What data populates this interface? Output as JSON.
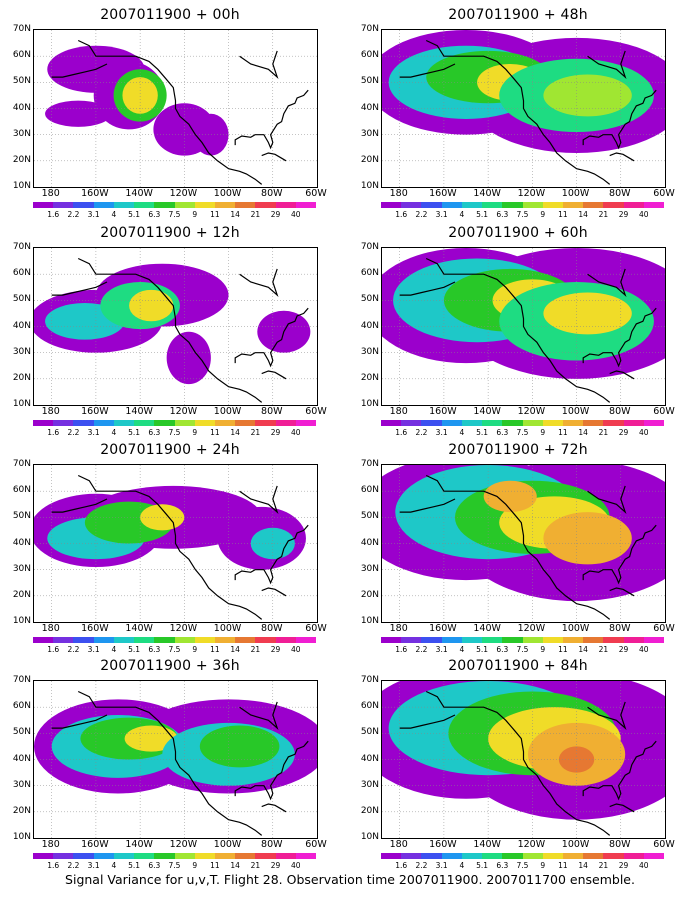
{
  "panels": [
    {
      "title": "2007011900 + 00h",
      "pattern": 0
    },
    {
      "title": "2007011900 + 12h",
      "pattern": 1
    },
    {
      "title": "2007011900 + 24h",
      "pattern": 2
    },
    {
      "title": "2007011900 + 36h",
      "pattern": 3
    },
    {
      "title": "2007011900 + 48h",
      "pattern": 4
    },
    {
      "title": "2007011900 + 60h",
      "pattern": 5
    },
    {
      "title": "2007011900 + 72h",
      "pattern": 6
    },
    {
      "title": "2007011900 + 84h",
      "pattern": 7
    }
  ],
  "lat_labels": [
    "70N",
    "60N",
    "50N",
    "40N",
    "30N",
    "20N",
    "10N"
  ],
  "lon_labels": [
    "180",
    "160W",
    "140W",
    "120W",
    "100W",
    "80W",
    "60W"
  ],
  "colorbar": {
    "labels": [
      "1.6",
      "2.2",
      "3.1",
      "4",
      "5.1",
      "6.3",
      "7.5",
      "9",
      "11",
      "14",
      "21",
      "29",
      "40"
    ],
    "colors": [
      "#9b00cc",
      "#7530e0",
      "#3c50f0",
      "#1e96f0",
      "#1ec8c8",
      "#1edc82",
      "#28c828",
      "#a0e632",
      "#f0dc28",
      "#f0af32",
      "#e67832",
      "#f03c50",
      "#f01e96",
      "#f01ed2"
    ]
  },
  "caption": "Signal Variance for u,v,T. Flight 28. Observation time 2007011900. 2007011700 ensemble."
}
